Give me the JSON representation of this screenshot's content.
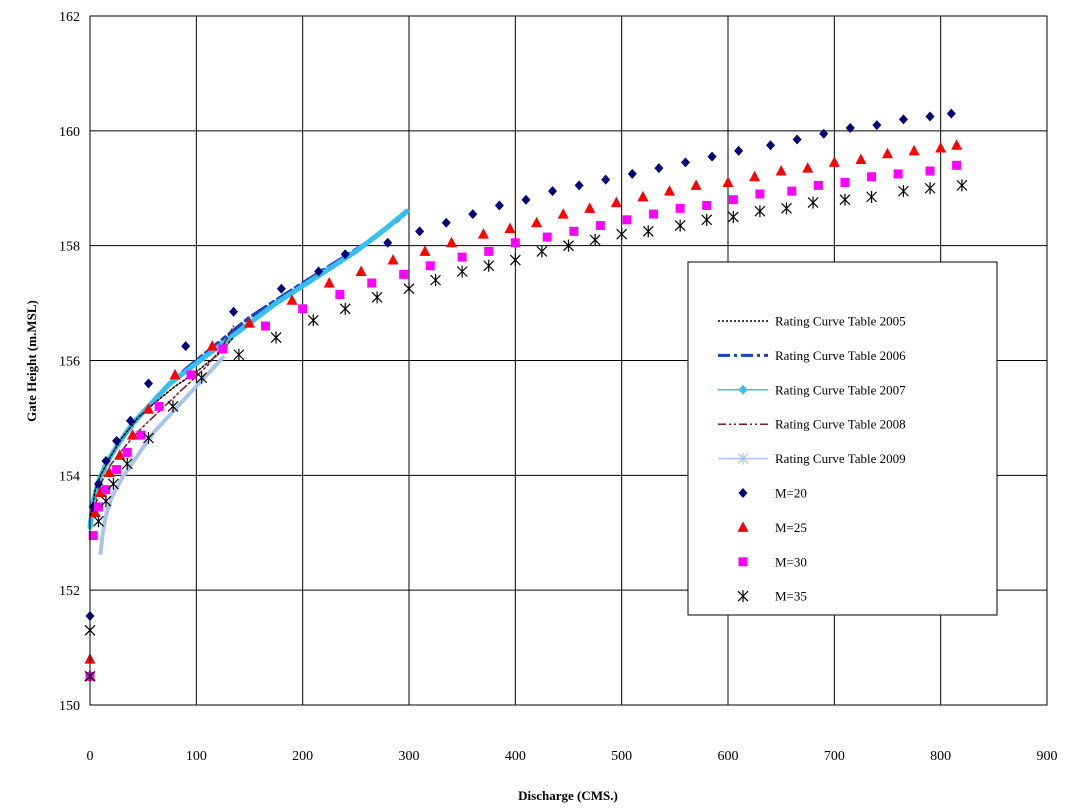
{
  "chart_data": {
    "type": "scatter",
    "title": "",
    "xlabel": "Discharge (CMS.)",
    "ylabel": "Gate Height (m.MSL)",
    "xlim": [
      0,
      900
    ],
    "ylim": [
      150,
      162
    ],
    "xticks": [
      0,
      100,
      200,
      300,
      400,
      500,
      600,
      700,
      800,
      900
    ],
    "yticks": [
      150,
      152,
      154,
      156,
      158,
      160,
      162
    ],
    "grid": true,
    "legend_position": "right",
    "series": [
      {
        "name": "Rating Curve Table 2005",
        "kind": "line",
        "style": "dotted",
        "color": "#000000",
        "points": [
          [
            1,
            153.3
          ],
          [
            5,
            153.75
          ],
          [
            10,
            154.0
          ],
          [
            20,
            154.35
          ],
          [
            30,
            154.65
          ],
          [
            45,
            155.0
          ],
          [
            60,
            155.25
          ],
          [
            80,
            155.55
          ],
          [
            100,
            155.8
          ],
          [
            120,
            156.1
          ],
          [
            135,
            156.4
          ]
        ]
      },
      {
        "name": "Rating Curve Table 2006",
        "kind": "line",
        "style": "dashdot",
        "color": "#1f3fbf",
        "points": [
          [
            0,
            153.2
          ],
          [
            5,
            153.7
          ],
          [
            10,
            153.95
          ],
          [
            20,
            154.35
          ],
          [
            35,
            154.75
          ],
          [
            50,
            155.1
          ],
          [
            70,
            155.5
          ],
          [
            90,
            155.85
          ],
          [
            110,
            156.15
          ],
          [
            130,
            156.45
          ],
          [
            150,
            156.75
          ],
          [
            175,
            157.05
          ],
          [
            200,
            157.35
          ],
          [
            230,
            157.7
          ],
          [
            260,
            158.05
          ],
          [
            290,
            158.45
          ],
          [
            296,
            158.55
          ]
        ]
      },
      {
        "name": "Rating Curve Table 2007",
        "kind": "line",
        "style": "solid",
        "color": "#33c0ee",
        "points": [
          [
            0,
            153.1
          ],
          [
            3,
            153.55
          ],
          [
            8,
            153.9
          ],
          [
            15,
            154.2
          ],
          [
            25,
            154.5
          ],
          [
            40,
            154.9
          ],
          [
            55,
            155.2
          ],
          [
            75,
            155.6
          ],
          [
            100,
            155.95
          ],
          [
            125,
            156.3
          ],
          [
            150,
            156.65
          ],
          [
            175,
            157.0
          ],
          [
            200,
            157.3
          ],
          [
            225,
            157.6
          ],
          [
            250,
            157.9
          ],
          [
            275,
            158.25
          ],
          [
            298,
            158.6
          ]
        ]
      },
      {
        "name": "Rating Curve Table 2008",
        "kind": "line",
        "style": "dashdotdot",
        "color": "#7a1a1a",
        "points": [
          [
            5,
            153.45
          ],
          [
            10,
            153.85
          ],
          [
            20,
            154.2
          ],
          [
            35,
            154.55
          ],
          [
            50,
            154.85
          ],
          [
            70,
            155.2
          ],
          [
            90,
            155.55
          ],
          [
            110,
            155.9
          ],
          [
            125,
            156.25
          ],
          [
            135,
            156.6
          ]
        ]
      },
      {
        "name": "Rating Curve Table 2009",
        "kind": "line",
        "style": "solid",
        "color": "#a8c4ec",
        "points": [
          [
            10,
            152.65
          ],
          [
            12,
            153.0
          ],
          [
            15,
            153.3
          ],
          [
            20,
            153.6
          ],
          [
            30,
            153.95
          ],
          [
            45,
            154.35
          ],
          [
            60,
            154.75
          ],
          [
            80,
            155.15
          ],
          [
            100,
            155.55
          ],
          [
            115,
            155.85
          ],
          [
            125,
            156.05
          ]
        ]
      },
      {
        "name": "M=20",
        "kind": "marker",
        "marker": "diamond",
        "color": "#00007a",
        "points": [
          [
            0,
            150.5
          ],
          [
            0,
            151.55
          ],
          [
            3,
            153.45
          ],
          [
            8,
            153.85
          ],
          [
            15,
            154.25
          ],
          [
            25,
            154.6
          ],
          [
            38,
            154.95
          ],
          [
            55,
            155.6
          ],
          [
            90,
            156.25
          ],
          [
            135,
            156.85
          ],
          [
            180,
            157.25
          ],
          [
            215,
            157.55
          ],
          [
            240,
            157.85
          ],
          [
            280,
            158.05
          ],
          [
            310,
            158.25
          ],
          [
            335,
            158.4
          ],
          [
            360,
            158.55
          ],
          [
            385,
            158.7
          ],
          [
            410,
            158.8
          ],
          [
            435,
            158.95
          ],
          [
            460,
            159.05
          ],
          [
            485,
            159.15
          ],
          [
            510,
            159.25
          ],
          [
            535,
            159.35
          ],
          [
            560,
            159.45
          ],
          [
            585,
            159.55
          ],
          [
            610,
            159.65
          ],
          [
            640,
            159.75
          ],
          [
            665,
            159.85
          ],
          [
            690,
            159.95
          ],
          [
            715,
            160.05
          ],
          [
            740,
            160.1
          ],
          [
            765,
            160.2
          ],
          [
            790,
            160.25
          ],
          [
            810,
            160.3
          ]
        ]
      },
      {
        "name": "M=25",
        "kind": "marker",
        "marker": "triangle",
        "color": "#ff0000",
        "points": [
          [
            0,
            150.5
          ],
          [
            0,
            150.8
          ],
          [
            5,
            153.35
          ],
          [
            10,
            153.7
          ],
          [
            18,
            154.05
          ],
          [
            28,
            154.35
          ],
          [
            40,
            154.7
          ],
          [
            55,
            155.15
          ],
          [
            80,
            155.75
          ],
          [
            115,
            156.25
          ],
          [
            150,
            156.65
          ],
          [
            190,
            157.05
          ],
          [
            225,
            157.35
          ],
          [
            255,
            157.55
          ],
          [
            285,
            157.75
          ],
          [
            315,
            157.9
          ],
          [
            340,
            158.05
          ],
          [
            370,
            158.2
          ],
          [
            395,
            158.3
          ],
          [
            420,
            158.4
          ],
          [
            445,
            158.55
          ],
          [
            470,
            158.65
          ],
          [
            495,
            158.75
          ],
          [
            520,
            158.85
          ],
          [
            545,
            158.95
          ],
          [
            570,
            159.05
          ],
          [
            600,
            159.1
          ],
          [
            625,
            159.2
          ],
          [
            650,
            159.3
          ],
          [
            675,
            159.35
          ],
          [
            700,
            159.45
          ],
          [
            725,
            159.5
          ],
          [
            750,
            159.6
          ],
          [
            775,
            159.65
          ],
          [
            800,
            159.7
          ],
          [
            815,
            159.75
          ]
        ]
      },
      {
        "name": "M=30",
        "kind": "marker",
        "marker": "square",
        "color": "#ff00ff",
        "points": [
          [
            0,
            150.5
          ],
          [
            3,
            152.95
          ],
          [
            8,
            153.45
          ],
          [
            15,
            153.75
          ],
          [
            25,
            154.1
          ],
          [
            35,
            154.4
          ],
          [
            48,
            154.7
          ],
          [
            65,
            155.2
          ],
          [
            95,
            155.75
          ],
          [
            125,
            156.2
          ],
          [
            165,
            156.6
          ],
          [
            200,
            156.9
          ],
          [
            235,
            157.15
          ],
          [
            265,
            157.35
          ],
          [
            295,
            157.5
          ],
          [
            320,
            157.65
          ],
          [
            350,
            157.8
          ],
          [
            375,
            157.9
          ],
          [
            400,
            158.05
          ],
          [
            430,
            158.15
          ],
          [
            455,
            158.25
          ],
          [
            480,
            158.35
          ],
          [
            505,
            158.45
          ],
          [
            530,
            158.55
          ],
          [
            555,
            158.65
          ],
          [
            580,
            158.7
          ],
          [
            605,
            158.8
          ],
          [
            630,
            158.9
          ],
          [
            660,
            158.95
          ],
          [
            685,
            159.05
          ],
          [
            710,
            159.1
          ],
          [
            735,
            159.2
          ],
          [
            760,
            159.25
          ],
          [
            790,
            159.3
          ],
          [
            815,
            159.4
          ]
        ]
      },
      {
        "name": "M=35",
        "kind": "marker",
        "marker": "asterisk",
        "color": "#000000",
        "points": [
          [
            0,
            150.5
          ],
          [
            0,
            151.3
          ],
          [
            8,
            153.2
          ],
          [
            15,
            153.55
          ],
          [
            22,
            153.85
          ],
          [
            35,
            154.2
          ],
          [
            55,
            154.65
          ],
          [
            78,
            155.2
          ],
          [
            105,
            155.7
          ],
          [
            140,
            156.1
          ],
          [
            175,
            156.4
          ],
          [
            210,
            156.7
          ],
          [
            240,
            156.9
          ],
          [
            270,
            157.1
          ],
          [
            300,
            157.25
          ],
          [
            325,
            157.4
          ],
          [
            350,
            157.55
          ],
          [
            375,
            157.65
          ],
          [
            400,
            157.75
          ],
          [
            425,
            157.9
          ],
          [
            450,
            158.0
          ],
          [
            475,
            158.1
          ],
          [
            500,
            158.2
          ],
          [
            525,
            158.25
          ],
          [
            555,
            158.35
          ],
          [
            580,
            158.45
          ],
          [
            605,
            158.5
          ],
          [
            630,
            158.6
          ],
          [
            655,
            158.65
          ],
          [
            680,
            158.75
          ],
          [
            710,
            158.8
          ],
          [
            735,
            158.85
          ],
          [
            765,
            158.95
          ],
          [
            790,
            159.0
          ],
          [
            820,
            159.05
          ]
        ]
      }
    ]
  }
}
